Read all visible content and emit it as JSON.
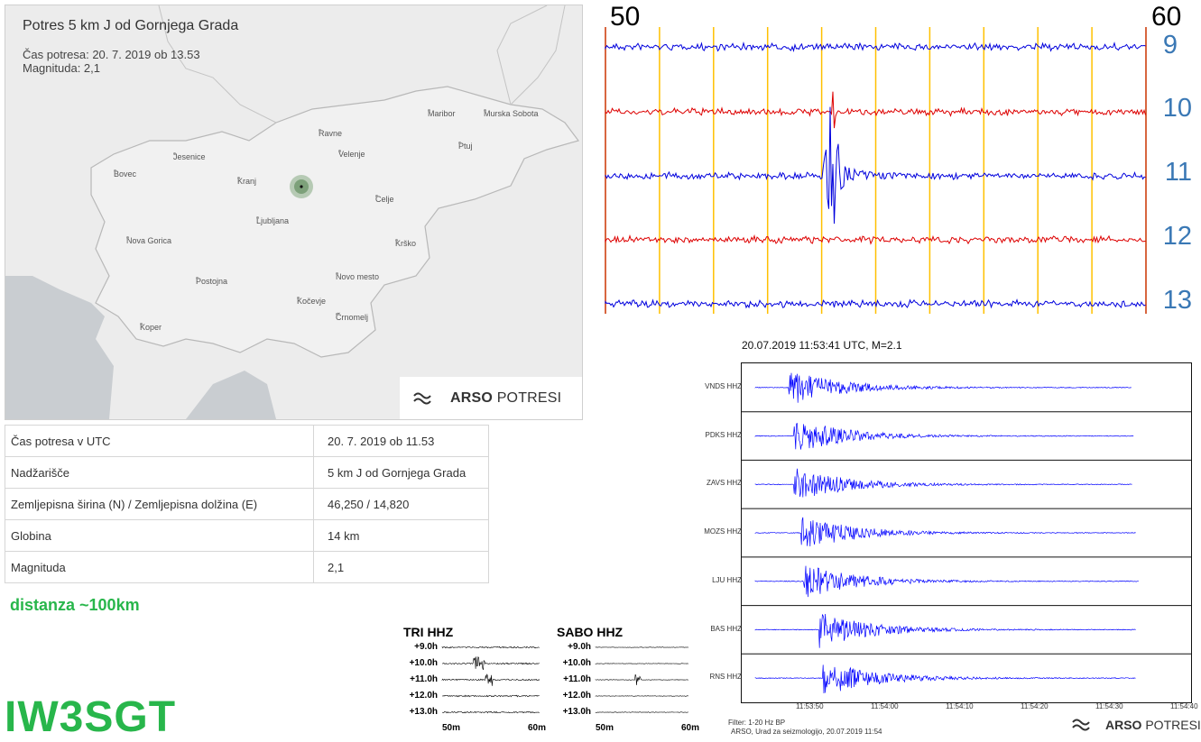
{
  "map": {
    "title": "Potres 5 km J od Gornjega Grada",
    "local_time": "Čas potresa: 20. 7. 2019 ob 13.53",
    "magnitude": "Magnituda: 2,1",
    "cities": [
      "Maribor",
      "Murska Sobota",
      "Ravne",
      "Ptuj",
      "Velenje",
      "Jesenice",
      "Bovec",
      "Kranj",
      "Celje",
      "Ljubljana",
      "Nova Gorica",
      "Krško",
      "Novo mesto",
      "Postojna",
      "Kočevje",
      "Črnomelj",
      "Koper"
    ],
    "brand_bold": "ARSO",
    "brand_rest": "POTRESI"
  },
  "info_table": [
    {
      "label": "Čas potresa v UTC",
      "value": "20. 7. 2019 ob 11.53"
    },
    {
      "label": "Nadžarišče",
      "value": "5 km J od Gornjega Grada"
    },
    {
      "label": "Zemljepisna širina (N) / Zemljepisna dolžina (E)",
      "value": "46,250 / 14,820"
    },
    {
      "label": "Globina",
      "value": "14 km"
    },
    {
      "label": "Magnituda",
      "value": "2,1"
    }
  ],
  "distance_note": "distanza ~100km",
  "callsign": "IW3SGT",
  "helicorder": {
    "minute_start": "50",
    "minute_end": "60",
    "rows": [
      "9",
      "10",
      "11",
      "12",
      "13"
    ],
    "colors": {
      "blue": "#0000dd",
      "red": "#dd0000",
      "grid": "#ffc000",
      "edge": "#cc3300"
    }
  },
  "seismogram": {
    "title": "20.07.2019  11:53:41 UTC, M=2.1",
    "stations": [
      "VNDS HHZ",
      "PDKS HHZ",
      "ZAVS HHZ",
      "MOZS HHZ",
      "LJU HHZ",
      "BAS HHZ",
      "RNS HHZ"
    ],
    "time_ticks": [
      "11:53:50",
      "11:54:00",
      "11:54:10",
      "11:54:20",
      "11:54:30",
      "11:54:40"
    ],
    "filter_line": "Filter: 1-20 Hz BP",
    "credit_line": "ARSO, Urad za seizmologijo, 20.07.2019  11:54",
    "brand_bold": "ARSO",
    "brand_rest": "POTRESI"
  },
  "mini_helicorders": [
    {
      "title": "TRI HHZ",
      "rows": [
        "+9.0h",
        "+10.0h",
        "+11.0h",
        "+12.0h",
        "+13.0h"
      ],
      "foot_left": "50m",
      "foot_right": "60m"
    },
    {
      "title": "SABO HHZ",
      "rows": [
        "+9.0h",
        "+10.0h",
        "+11.0h",
        "+12.0h",
        "+13.0h"
      ],
      "foot_left": "50m",
      "foot_right": "60m"
    }
  ]
}
